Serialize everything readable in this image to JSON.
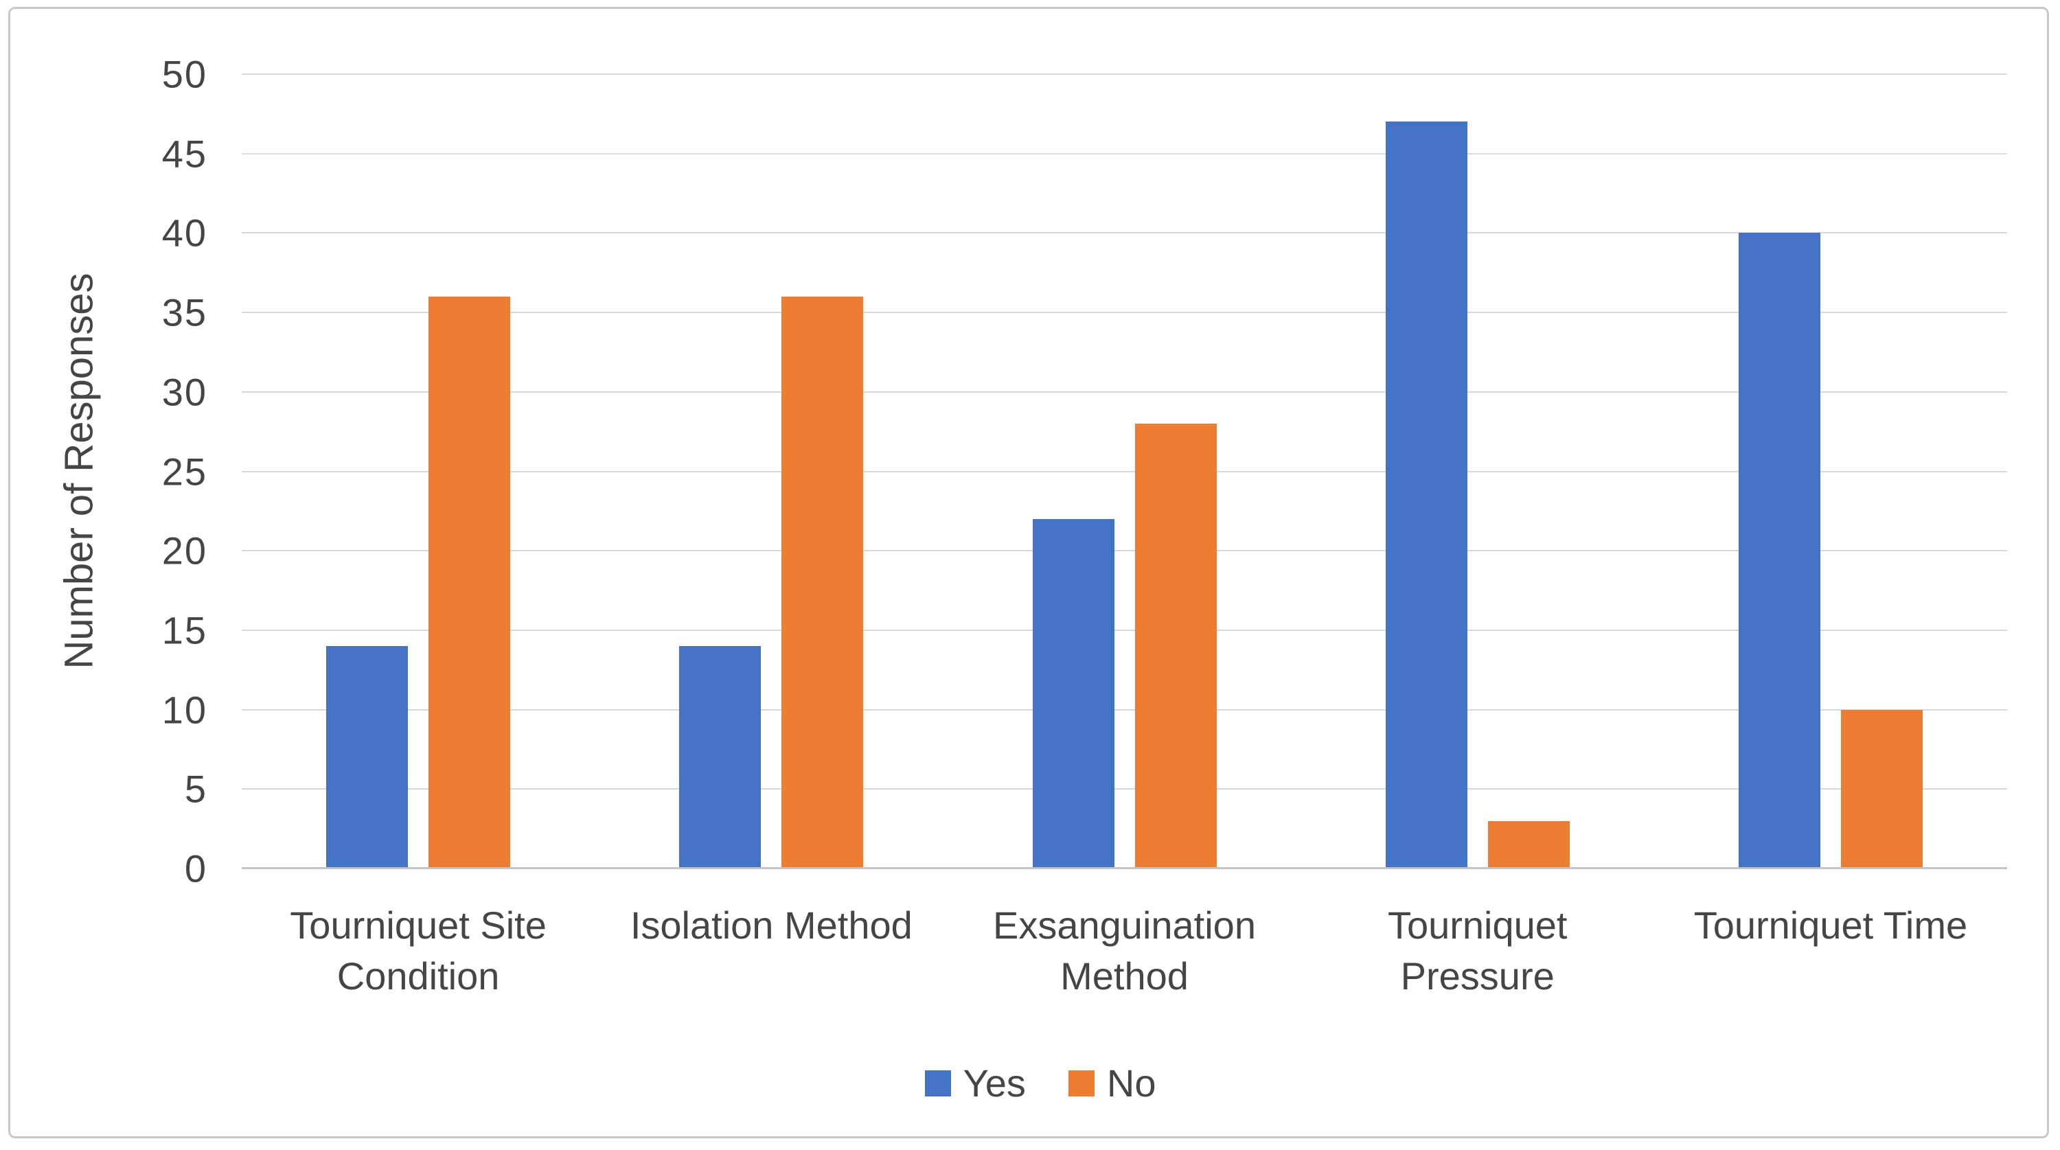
{
  "chart_data": {
    "type": "bar",
    "title": "",
    "categories": [
      "Tourniquet Site Condition",
      "Isolation Method",
      "Exsanguination Method",
      "Tourniquet Pressure",
      "Tourniquet Time"
    ],
    "series": [
      {
        "name": "Yes",
        "color": "#4472C4",
        "values": [
          14,
          14,
          22,
          47,
          40
        ]
      },
      {
        "name": "No",
        "color": "#ED7D31",
        "values": [
          36,
          36,
          28,
          3,
          10
        ]
      }
    ],
    "xlabel": "",
    "ylabel": "Number of Responses",
    "ylim": [
      0,
      50
    ],
    "yticks": [
      0,
      5,
      10,
      15,
      20,
      25,
      30,
      35,
      40,
      45,
      50
    ],
    "grid": true,
    "legend_position": "bottom"
  },
  "colors": {
    "gridline": "#D9D9D9",
    "axis_line": "#C3C3C3",
    "text": "#454545",
    "frame_border": "#C9C9C9",
    "background": "#FFFFFF"
  }
}
